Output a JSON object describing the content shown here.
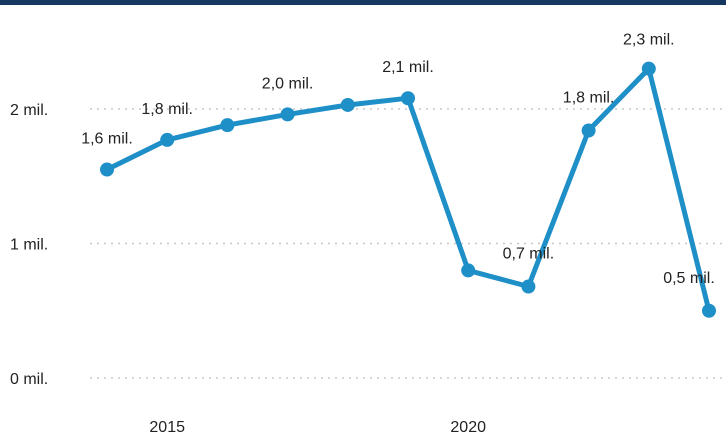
{
  "chart_data": {
    "type": "line",
    "title": "",
    "xlabel": "",
    "ylabel": "",
    "x": [
      2014,
      2015,
      2016,
      2017,
      2018,
      2019,
      2020,
      2021,
      2022,
      2023,
      2024
    ],
    "values": [
      1.55,
      1.77,
      1.88,
      1.96,
      2.03,
      2.08,
      0.8,
      0.68,
      1.84,
      2.3,
      0.5
    ],
    "data_labels": [
      "1,6 mil.",
      "1,8 mil.",
      "",
      "2,0 mil.",
      "",
      "2,1 mil.",
      "",
      "0,7 mil.",
      "1,8 mil.",
      "2,3 mil.",
      "0,5 mil."
    ],
    "x_ticks": [
      {
        "value": 2015,
        "label": "2015"
      },
      {
        "value": 2020,
        "label": "2020"
      }
    ],
    "y_ticks": [
      {
        "value": 0,
        "label": "0 mil."
      },
      {
        "value": 1,
        "label": "1 mil."
      },
      {
        "value": 2,
        "label": "2 mil."
      }
    ],
    "ylim": [
      0,
      2.5
    ],
    "grid": "horizontal dotted",
    "colors": {
      "line": "#1f8fc8",
      "grid": "#c8c8c8",
      "top_bar": "#16375f"
    }
  }
}
